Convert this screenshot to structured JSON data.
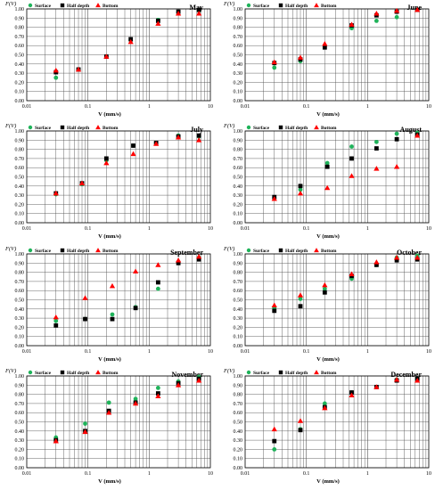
{
  "chart_data": [
    {
      "type": "scatter",
      "title": "May",
      "ylabel": "F(V)",
      "xlabel": "V (mm/s)",
      "xscale": "log",
      "xlim": [
        0.01,
        10
      ],
      "ylim": [
        0,
        1
      ],
      "legend": "top-left",
      "series": [
        {
          "name": "Surface",
          "color": "#1fb35a",
          "marker": "circle",
          "x": [
            0.03,
            0.07,
            0.2,
            0.5,
            1.4,
            3.0,
            6.5
          ],
          "y": [
            0.25,
            0.34,
            0.48,
            0.66,
            0.88,
            0.96,
            0.98
          ]
        },
        {
          "name": "Half depth",
          "color": "#000000",
          "marker": "square",
          "x": [
            0.03,
            0.07,
            0.2,
            0.5,
            1.4,
            3.0,
            6.5
          ],
          "y": [
            0.31,
            0.34,
            0.48,
            0.67,
            0.87,
            0.97,
            0.99
          ]
        },
        {
          "name": "Bottom",
          "color": "#ff0000",
          "marker": "triangle",
          "x": [
            0.03,
            0.07,
            0.2,
            0.5,
            1.4,
            3.0,
            6.5
          ],
          "y": [
            0.33,
            0.34,
            0.48,
            0.64,
            0.84,
            0.95,
            0.95
          ]
        }
      ]
    },
    {
      "type": "scatter",
      "title": "June",
      "ylabel": "F(V)",
      "xlabel": "V (mm/s)",
      "xscale": "log",
      "xlim": [
        0.01,
        10
      ],
      "ylim": [
        0,
        1
      ],
      "legend": "top-left",
      "series": [
        {
          "name": "Surface",
          "color": "#1fb35a",
          "marker": "circle",
          "x": [
            0.03,
            0.08,
            0.2,
            0.55,
            1.4,
            3.0,
            6.5
          ],
          "y": [
            0.36,
            0.43,
            0.59,
            0.79,
            0.87,
            0.91,
            0.99
          ]
        },
        {
          "name": "Half depth",
          "color": "#000000",
          "marker": "square",
          "x": [
            0.03,
            0.08,
            0.2,
            0.55,
            1.4,
            3.0,
            6.5
          ],
          "y": [
            0.41,
            0.45,
            0.58,
            0.82,
            0.93,
            0.97,
            0.99
          ]
        },
        {
          "name": "Bottom",
          "color": "#ff0000",
          "marker": "triangle",
          "x": [
            0.03,
            0.08,
            0.2,
            0.55,
            1.4,
            3.0,
            6.5
          ],
          "y": [
            0.42,
            0.47,
            0.62,
            0.83,
            0.95,
            0.98,
            0.99
          ]
        }
      ]
    },
    {
      "type": "scatter",
      "title": "July",
      "ylabel": "F(V)",
      "xlabel": "V (mm/s)",
      "xscale": "log",
      "xlim": [
        0.01,
        10
      ],
      "ylim": [
        0,
        1
      ],
      "legend": "top-left",
      "series": [
        {
          "name": "Surface",
          "color": "#1fb35a",
          "marker": "circle",
          "x": [
            0.03,
            0.08,
            0.2,
            0.55,
            1.3,
            3.0,
            6.5
          ],
          "y": [
            0.31,
            0.42,
            0.68,
            0.84,
            0.87,
            0.95,
            0.94
          ]
        },
        {
          "name": "Half depth",
          "color": "#000000",
          "marker": "square",
          "x": [
            0.03,
            0.08,
            0.2,
            0.55,
            1.3,
            3.0,
            6.5
          ],
          "y": [
            0.32,
            0.43,
            0.7,
            0.84,
            0.87,
            0.94,
            0.95
          ]
        },
        {
          "name": "Bottom",
          "color": "#ff0000",
          "marker": "triangle",
          "x": [
            0.03,
            0.08,
            0.2,
            0.55,
            1.3,
            3.0,
            6.5
          ],
          "y": [
            0.32,
            0.43,
            0.65,
            0.75,
            0.86,
            0.93,
            0.9
          ]
        }
      ]
    },
    {
      "type": "scatter",
      "title": "August",
      "ylabel": "F(V)",
      "xlabel": "V (mm/s)",
      "xscale": "log",
      "xlim": [
        0.01,
        10
      ],
      "ylim": [
        0,
        1
      ],
      "legend": "top-left",
      "series": [
        {
          "name": "Surface",
          "color": "#1fb35a",
          "marker": "circle",
          "x": [
            0.03,
            0.08,
            0.22,
            0.55,
            1.4,
            3.0,
            6.5
          ],
          "y": [
            0.27,
            0.36,
            0.65,
            0.83,
            0.88,
            0.97,
            0.98
          ]
        },
        {
          "name": "Half depth",
          "color": "#000000",
          "marker": "square",
          "x": [
            0.03,
            0.08,
            0.22,
            0.55,
            1.4,
            3.0,
            6.5
          ],
          "y": [
            0.28,
            0.4,
            0.61,
            0.7,
            0.81,
            0.91,
            0.96
          ]
        },
        {
          "name": "Bottom",
          "color": "#ff0000",
          "marker": "triangle",
          "x": [
            0.03,
            0.08,
            0.22,
            0.55,
            1.4,
            3.0,
            6.5
          ],
          "y": [
            0.26,
            0.32,
            0.38,
            0.51,
            0.59,
            0.61,
            0.95
          ]
        }
      ]
    },
    {
      "type": "scatter",
      "title": "September",
      "ylabel": "F(V)",
      "xlabel": "V (mm/s)",
      "xscale": "log",
      "xlim": [
        0.01,
        10
      ],
      "ylim": [
        0,
        1
      ],
      "legend": "top-left",
      "series": [
        {
          "name": "Surface",
          "color": "#1fb35a",
          "marker": "circle",
          "x": [
            0.03,
            0.09,
            0.25,
            0.6,
            1.4,
            3.0,
            6.5
          ],
          "y": [
            0.27,
            0.29,
            0.34,
            0.42,
            0.62,
            0.91,
            0.96
          ]
        },
        {
          "name": "Half depth",
          "color": "#000000",
          "marker": "square",
          "x": [
            0.03,
            0.09,
            0.25,
            0.6,
            1.4,
            3.0,
            6.5
          ],
          "y": [
            0.22,
            0.29,
            0.29,
            0.41,
            0.69,
            0.9,
            0.94
          ]
        },
        {
          "name": "Bottom",
          "color": "#ff0000",
          "marker": "triangle",
          "x": [
            0.03,
            0.09,
            0.25,
            0.6,
            1.4,
            3.0,
            6.5
          ],
          "y": [
            0.31,
            0.52,
            0.65,
            0.81,
            0.88,
            0.93,
            0.97
          ]
        }
      ]
    },
    {
      "type": "scatter",
      "title": "October",
      "ylabel": "F(V)",
      "xlabel": "V (mm/s)",
      "xscale": "log",
      "xlim": [
        0.01,
        10
      ],
      "ylim": [
        0,
        1
      ],
      "legend": "top-left",
      "series": [
        {
          "name": "Surface",
          "color": "#1fb35a",
          "marker": "circle",
          "x": [
            0.03,
            0.08,
            0.2,
            0.55,
            1.4,
            3.0,
            6.5
          ],
          "y": [
            0.41,
            0.51,
            0.62,
            0.73,
            0.88,
            0.96,
            0.98
          ]
        },
        {
          "name": "Half depth",
          "color": "#000000",
          "marker": "square",
          "x": [
            0.03,
            0.08,
            0.2,
            0.55,
            1.4,
            3.0,
            6.5
          ],
          "y": [
            0.38,
            0.43,
            0.58,
            0.76,
            0.88,
            0.93,
            0.94
          ]
        },
        {
          "name": "Bottom",
          "color": "#ff0000",
          "marker": "triangle",
          "x": [
            0.03,
            0.08,
            0.2,
            0.55,
            1.4,
            3.0,
            6.5
          ],
          "y": [
            0.44,
            0.55,
            0.66,
            0.78,
            0.91,
            0.96,
            0.96
          ]
        }
      ]
    },
    {
      "type": "scatter",
      "title": "November",
      "ylabel": "F(V)",
      "xlabel": "V (mm/s)",
      "xscale": "log",
      "xlim": [
        0.01,
        10
      ],
      "ylim": [
        0,
        1
      ],
      "legend": "top-left",
      "series": [
        {
          "name": "Surface",
          "color": "#1fb35a",
          "marker": "circle",
          "x": [
            0.03,
            0.09,
            0.22,
            0.6,
            1.4,
            3.0,
            6.5
          ],
          "y": [
            0.33,
            0.48,
            0.71,
            0.75,
            0.87,
            0.94,
            0.99
          ]
        },
        {
          "name": "Half depth",
          "color": "#000000",
          "marker": "square",
          "x": [
            0.03,
            0.09,
            0.22,
            0.6,
            1.4,
            3.0,
            6.5
          ],
          "y": [
            0.3,
            0.4,
            0.62,
            0.71,
            0.81,
            0.92,
            0.97
          ]
        },
        {
          "name": "Bottom",
          "color": "#ff0000",
          "marker": "triangle",
          "x": [
            0.03,
            0.09,
            0.22,
            0.6,
            1.4,
            3.0,
            6.5
          ],
          "y": [
            0.29,
            0.39,
            0.6,
            0.7,
            0.78,
            0.9,
            0.95
          ]
        }
      ]
    },
    {
      "type": "scatter",
      "title": "December",
      "ylabel": "F(V)",
      "xlabel": "V (mm/s)",
      "xscale": "log",
      "xlim": [
        0.01,
        10
      ],
      "ylim": [
        0,
        1
      ],
      "legend": "top-left",
      "series": [
        {
          "name": "Surface",
          "color": "#1fb35a",
          "marker": "circle",
          "x": [
            0.03,
            0.08,
            0.2,
            0.55,
            1.4,
            3.0,
            6.5
          ],
          "y": [
            0.2,
            0.42,
            0.7,
            0.82,
            0.88,
            0.96,
            0.97
          ]
        },
        {
          "name": "Half depth",
          "color": "#000000",
          "marker": "square",
          "x": [
            0.03,
            0.08,
            0.2,
            0.55,
            1.4,
            3.0,
            6.5
          ],
          "y": [
            0.29,
            0.41,
            0.66,
            0.82,
            0.88,
            0.95,
            0.97
          ]
        },
        {
          "name": "Bottom",
          "color": "#ff0000",
          "marker": "triangle",
          "x": [
            0.03,
            0.08,
            0.2,
            0.55,
            1.4,
            3.0,
            6.5
          ],
          "y": [
            0.42,
            0.51,
            0.65,
            0.79,
            0.88,
            0.96,
            0.95
          ]
        }
      ]
    }
  ]
}
